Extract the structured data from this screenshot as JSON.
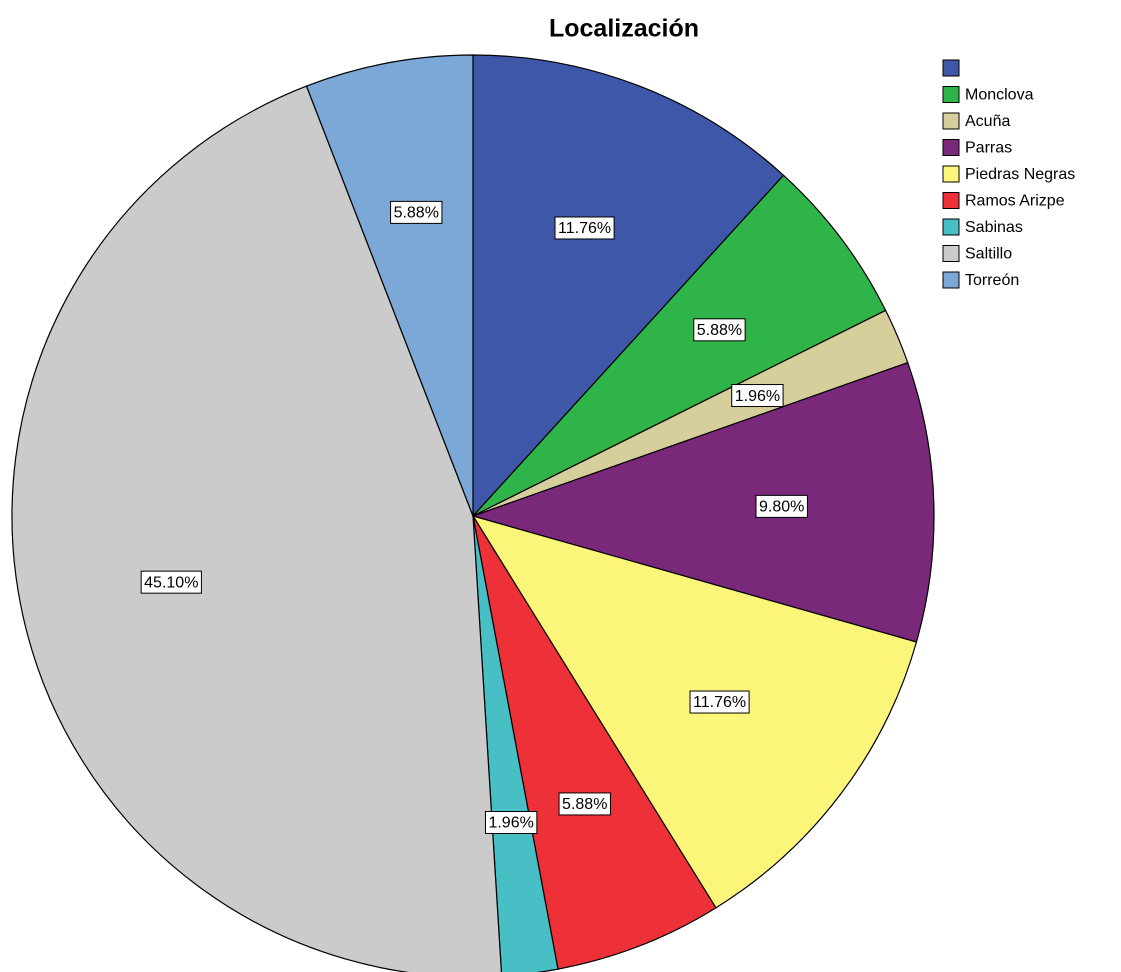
{
  "chart_data": {
    "type": "pie",
    "title": "Localización",
    "categories": [
      null,
      "Monclova",
      "Acuña",
      "Parras",
      "Piedras Negras",
      "Ramos Arizpe",
      "Sabinas",
      "Saltillo",
      "Torreón"
    ],
    "values": [
      11.76,
      5.88,
      1.96,
      9.8,
      11.76,
      5.88,
      1.96,
      45.1,
      5.88
    ],
    "value_labels": [
      "11.76%",
      "5.88%",
      "1.96%",
      "9.80%",
      "11.76%",
      "5.88%",
      "1.96%",
      "45.10%",
      "5.88%"
    ],
    "colors": [
      "#3f57a8",
      "#2eb449",
      "#d6cf9b",
      "#7a287a",
      "#fbf67a",
      "#ee3138",
      "#47bfc4",
      "#cbcbcb",
      "#7ca8d7"
    ],
    "legend": "top-right"
  }
}
